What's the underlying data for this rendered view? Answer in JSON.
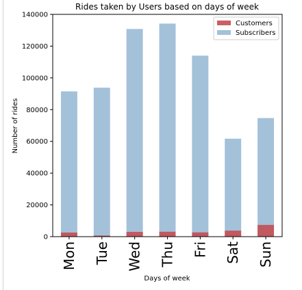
{
  "chart_data": {
    "type": "bar",
    "stacked": false,
    "overlay": true,
    "title": "Rides taken by Users based on days of week",
    "xlabel": "Days of week",
    "ylabel": "Number of rides",
    "categories": [
      "Mon",
      "Tue",
      "Wed",
      "Thu",
      "Fri",
      "Sat",
      "Sun"
    ],
    "series": [
      {
        "name": "Customers",
        "color": "#c44e52",
        "opacity": 0.9,
        "values": [
          2600,
          700,
          3000,
          3100,
          2700,
          3800,
          7400
        ]
      },
      {
        "name": "Subscribers",
        "color": "#7ea6cb",
        "opacity": 0.7,
        "values": [
          91500,
          93800,
          130800,
          134200,
          114000,
          61700,
          74700
        ]
      }
    ],
    "ylim": [
      0,
      140000
    ],
    "yticks": [
      0,
      20000,
      40000,
      60000,
      80000,
      100000,
      120000,
      140000
    ],
    "legend": "top-right",
    "grid": false
  }
}
